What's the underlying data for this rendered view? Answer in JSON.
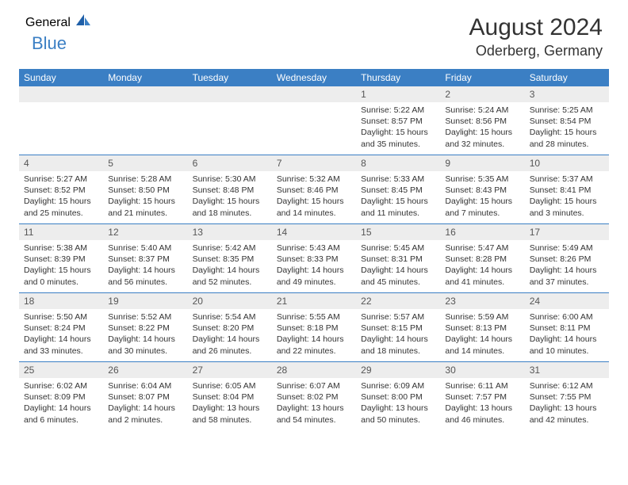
{
  "logo": {
    "part1": "General",
    "part2": "Blue"
  },
  "title": "August 2024",
  "location": "Oderberg, Germany",
  "colors": {
    "header_bg": "#3b7fc4",
    "header_text": "#ffffff",
    "daynum_bg": "#ededed",
    "text": "#333333",
    "divider": "#3b7fc4"
  },
  "day_names": [
    "Sunday",
    "Monday",
    "Tuesday",
    "Wednesday",
    "Thursday",
    "Friday",
    "Saturday"
  ],
  "weeks": [
    [
      null,
      null,
      null,
      null,
      {
        "n": "1",
        "sr": "Sunrise: 5:22 AM",
        "ss": "Sunset: 8:57 PM",
        "d1": "Daylight: 15 hours",
        "d2": "and 35 minutes."
      },
      {
        "n": "2",
        "sr": "Sunrise: 5:24 AM",
        "ss": "Sunset: 8:56 PM",
        "d1": "Daylight: 15 hours",
        "d2": "and 32 minutes."
      },
      {
        "n": "3",
        "sr": "Sunrise: 5:25 AM",
        "ss": "Sunset: 8:54 PM",
        "d1": "Daylight: 15 hours",
        "d2": "and 28 minutes."
      }
    ],
    [
      {
        "n": "4",
        "sr": "Sunrise: 5:27 AM",
        "ss": "Sunset: 8:52 PM",
        "d1": "Daylight: 15 hours",
        "d2": "and 25 minutes."
      },
      {
        "n": "5",
        "sr": "Sunrise: 5:28 AM",
        "ss": "Sunset: 8:50 PM",
        "d1": "Daylight: 15 hours",
        "d2": "and 21 minutes."
      },
      {
        "n": "6",
        "sr": "Sunrise: 5:30 AM",
        "ss": "Sunset: 8:48 PM",
        "d1": "Daylight: 15 hours",
        "d2": "and 18 minutes."
      },
      {
        "n": "7",
        "sr": "Sunrise: 5:32 AM",
        "ss": "Sunset: 8:46 PM",
        "d1": "Daylight: 15 hours",
        "d2": "and 14 minutes."
      },
      {
        "n": "8",
        "sr": "Sunrise: 5:33 AM",
        "ss": "Sunset: 8:45 PM",
        "d1": "Daylight: 15 hours",
        "d2": "and 11 minutes."
      },
      {
        "n": "9",
        "sr": "Sunrise: 5:35 AM",
        "ss": "Sunset: 8:43 PM",
        "d1": "Daylight: 15 hours",
        "d2": "and 7 minutes."
      },
      {
        "n": "10",
        "sr": "Sunrise: 5:37 AM",
        "ss": "Sunset: 8:41 PM",
        "d1": "Daylight: 15 hours",
        "d2": "and 3 minutes."
      }
    ],
    [
      {
        "n": "11",
        "sr": "Sunrise: 5:38 AM",
        "ss": "Sunset: 8:39 PM",
        "d1": "Daylight: 15 hours",
        "d2": "and 0 minutes."
      },
      {
        "n": "12",
        "sr": "Sunrise: 5:40 AM",
        "ss": "Sunset: 8:37 PM",
        "d1": "Daylight: 14 hours",
        "d2": "and 56 minutes."
      },
      {
        "n": "13",
        "sr": "Sunrise: 5:42 AM",
        "ss": "Sunset: 8:35 PM",
        "d1": "Daylight: 14 hours",
        "d2": "and 52 minutes."
      },
      {
        "n": "14",
        "sr": "Sunrise: 5:43 AM",
        "ss": "Sunset: 8:33 PM",
        "d1": "Daylight: 14 hours",
        "d2": "and 49 minutes."
      },
      {
        "n": "15",
        "sr": "Sunrise: 5:45 AM",
        "ss": "Sunset: 8:31 PM",
        "d1": "Daylight: 14 hours",
        "d2": "and 45 minutes."
      },
      {
        "n": "16",
        "sr": "Sunrise: 5:47 AM",
        "ss": "Sunset: 8:28 PM",
        "d1": "Daylight: 14 hours",
        "d2": "and 41 minutes."
      },
      {
        "n": "17",
        "sr": "Sunrise: 5:49 AM",
        "ss": "Sunset: 8:26 PM",
        "d1": "Daylight: 14 hours",
        "d2": "and 37 minutes."
      }
    ],
    [
      {
        "n": "18",
        "sr": "Sunrise: 5:50 AM",
        "ss": "Sunset: 8:24 PM",
        "d1": "Daylight: 14 hours",
        "d2": "and 33 minutes."
      },
      {
        "n": "19",
        "sr": "Sunrise: 5:52 AM",
        "ss": "Sunset: 8:22 PM",
        "d1": "Daylight: 14 hours",
        "d2": "and 30 minutes."
      },
      {
        "n": "20",
        "sr": "Sunrise: 5:54 AM",
        "ss": "Sunset: 8:20 PM",
        "d1": "Daylight: 14 hours",
        "d2": "and 26 minutes."
      },
      {
        "n": "21",
        "sr": "Sunrise: 5:55 AM",
        "ss": "Sunset: 8:18 PM",
        "d1": "Daylight: 14 hours",
        "d2": "and 22 minutes."
      },
      {
        "n": "22",
        "sr": "Sunrise: 5:57 AM",
        "ss": "Sunset: 8:15 PM",
        "d1": "Daylight: 14 hours",
        "d2": "and 18 minutes."
      },
      {
        "n": "23",
        "sr": "Sunrise: 5:59 AM",
        "ss": "Sunset: 8:13 PM",
        "d1": "Daylight: 14 hours",
        "d2": "and 14 minutes."
      },
      {
        "n": "24",
        "sr": "Sunrise: 6:00 AM",
        "ss": "Sunset: 8:11 PM",
        "d1": "Daylight: 14 hours",
        "d2": "and 10 minutes."
      }
    ],
    [
      {
        "n": "25",
        "sr": "Sunrise: 6:02 AM",
        "ss": "Sunset: 8:09 PM",
        "d1": "Daylight: 14 hours",
        "d2": "and 6 minutes."
      },
      {
        "n": "26",
        "sr": "Sunrise: 6:04 AM",
        "ss": "Sunset: 8:07 PM",
        "d1": "Daylight: 14 hours",
        "d2": "and 2 minutes."
      },
      {
        "n": "27",
        "sr": "Sunrise: 6:05 AM",
        "ss": "Sunset: 8:04 PM",
        "d1": "Daylight: 13 hours",
        "d2": "and 58 minutes."
      },
      {
        "n": "28",
        "sr": "Sunrise: 6:07 AM",
        "ss": "Sunset: 8:02 PM",
        "d1": "Daylight: 13 hours",
        "d2": "and 54 minutes."
      },
      {
        "n": "29",
        "sr": "Sunrise: 6:09 AM",
        "ss": "Sunset: 8:00 PM",
        "d1": "Daylight: 13 hours",
        "d2": "and 50 minutes."
      },
      {
        "n": "30",
        "sr": "Sunrise: 6:11 AM",
        "ss": "Sunset: 7:57 PM",
        "d1": "Daylight: 13 hours",
        "d2": "and 46 minutes."
      },
      {
        "n": "31",
        "sr": "Sunrise: 6:12 AM",
        "ss": "Sunset: 7:55 PM",
        "d1": "Daylight: 13 hours",
        "d2": "and 42 minutes."
      }
    ]
  ]
}
